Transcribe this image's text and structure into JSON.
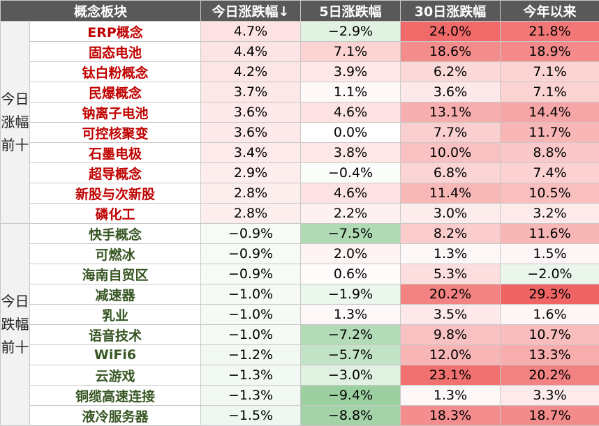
{
  "header": [
    "概念板块",
    "今日涨跌幅↓",
    "5日涨跌幅",
    "30日涨跌幅",
    "今年以来"
  ],
  "groups": [
    {
      "label": "今日涨幅前十",
      "rows": [
        [
          "ERP概念",
          "4.7%",
          "−2.9%",
          "24.0%",
          "21.8%"
        ],
        [
          "固态电池",
          "4.4%",
          "7.1%",
          "18.6%",
          "18.9%"
        ],
        [
          "钛白粉概念",
          "4.2%",
          "3.9%",
          "6.2%",
          "7.1%"
        ],
        [
          "民爆概念",
          "3.7%",
          "1.1%",
          "3.6%",
          "7.1%"
        ],
        [
          "钠离子电池",
          "3.6%",
          "4.6%",
          "13.1%",
          "14.4%"
        ],
        [
          "可控核聚变",
          "3.6%",
          "0.0%",
          "7.7%",
          "11.7%"
        ],
        [
          "石墨电极",
          "3.4%",
          "3.8%",
          "10.0%",
          "8.8%"
        ],
        [
          "超导概念",
          "2.9%",
          "−0.4%",
          "6.8%",
          "7.4%"
        ],
        [
          "新股与次新股",
          "2.8%",
          "4.6%",
          "11.4%",
          "10.5%"
        ],
        [
          "磷化工",
          "2.8%",
          "2.2%",
          "3.0%",
          "3.2%"
        ]
      ]
    },
    {
      "label": "今日跌幅前十",
      "rows": [
        [
          "快手概念",
          "−0.9%",
          "−7.5%",
          "8.2%",
          "11.6%"
        ],
        [
          "可燃冰",
          "−0.9%",
          "2.0%",
          "1.3%",
          "1.5%"
        ],
        [
          "海南自贸区",
          "−0.9%",
          "0.6%",
          "5.3%",
          "−2.0%"
        ],
        [
          "减速器",
          "−1.0%",
          "−1.9%",
          "20.2%",
          "29.3%"
        ],
        [
          "乳业",
          "−1.0%",
          "1.3%",
          "3.5%",
          "1.6%"
        ],
        [
          "语音技术",
          "−1.0%",
          "−7.2%",
          "9.8%",
          "10.7%"
        ],
        [
          "WiFi6",
          "−1.2%",
          "−5.7%",
          "12.0%",
          "13.3%"
        ],
        [
          "云游戏",
          "−1.3%",
          "−3.0%",
          "23.1%",
          "20.2%"
        ],
        [
          "铜缆高速连接",
          "−1.3%",
          "−9.4%",
          "1.3%",
          "3.3%"
        ],
        [
          "液冷服务器",
          "−1.5%",
          "−8.8%",
          "18.3%",
          "18.7%"
        ]
      ]
    }
  ]
}
